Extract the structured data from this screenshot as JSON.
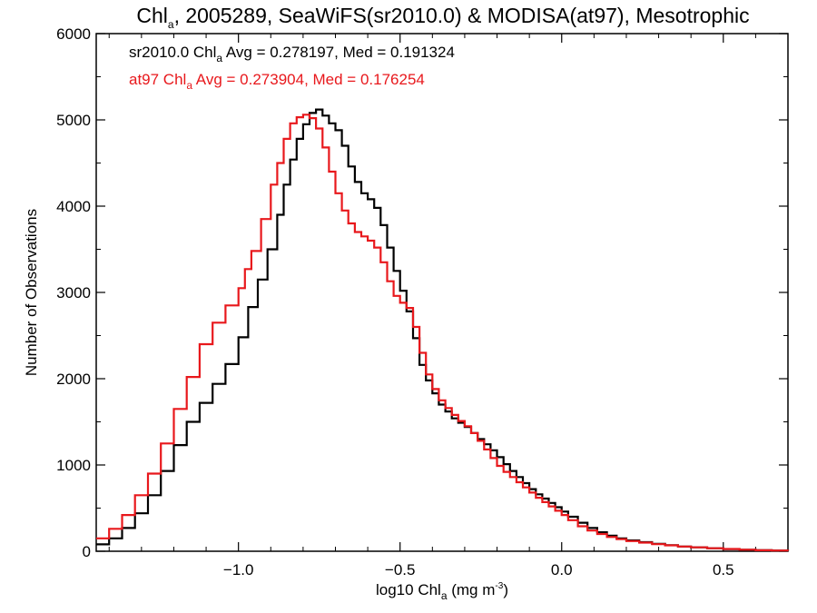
{
  "chart_data": {
    "type": "line",
    "step": true,
    "title": {
      "pre": "Chl",
      "sub": "a",
      "post": ", 2005289, SeaWiFS(sr2010.0) & MODISA(at97), Mesotrophic"
    },
    "xlabel": {
      "pre": "log10 Chl",
      "sub": "a",
      "mid": " (mg m",
      "sup": "-3",
      "post": ")"
    },
    "ylabel": "Number of Observations",
    "xlim": [
      -1.44,
      0.7
    ],
    "ylim": [
      0,
      6000
    ],
    "x_ticks": [
      {
        "value": -1.0,
        "label": "−1.0"
      },
      {
        "value": -0.5,
        "label": "−0.5"
      },
      {
        "value": 0.0,
        "label": "0.0"
      },
      {
        "value": 0.5,
        "label": "0.5"
      }
    ],
    "y_ticks": [
      {
        "value": 0,
        "label": "0"
      },
      {
        "value": 1000,
        "label": "1000"
      },
      {
        "value": 2000,
        "label": "2000"
      },
      {
        "value": 3000,
        "label": "3000"
      },
      {
        "value": 4000,
        "label": "4000"
      },
      {
        "value": 5000,
        "label": "5000"
      },
      {
        "value": 6000,
        "label": "6000"
      }
    ],
    "series": [
      {
        "name": "sr2010.0",
        "color": "#000000",
        "stats": {
          "pre": "sr2010.0 Chl",
          "sub": "a",
          "post": " Avg = 0.278197, Med = 0.191324"
        },
        "points": [
          [
            -1.44,
            80
          ],
          [
            -1.4,
            150
          ],
          [
            -1.36,
            270
          ],
          [
            -1.32,
            440
          ],
          [
            -1.28,
            650
          ],
          [
            -1.24,
            930
          ],
          [
            -1.2,
            1230
          ],
          [
            -1.16,
            1500
          ],
          [
            -1.12,
            1720
          ],
          [
            -1.08,
            1940
          ],
          [
            -1.04,
            2170
          ],
          [
            -1.0,
            2480
          ],
          [
            -0.97,
            2830
          ],
          [
            -0.94,
            3150
          ],
          [
            -0.91,
            3500
          ],
          [
            -0.88,
            3900
          ],
          [
            -0.86,
            4250
          ],
          [
            -0.84,
            4540
          ],
          [
            -0.82,
            4780
          ],
          [
            -0.8,
            4950
          ],
          [
            -0.78,
            5080
          ],
          [
            -0.76,
            5120
          ],
          [
            -0.74,
            5050
          ],
          [
            -0.72,
            4960
          ],
          [
            -0.7,
            4880
          ],
          [
            -0.68,
            4700
          ],
          [
            -0.66,
            4460
          ],
          [
            -0.64,
            4280
          ],
          [
            -0.62,
            4150
          ],
          [
            -0.6,
            4080
          ],
          [
            -0.58,
            3980
          ],
          [
            -0.56,
            3780
          ],
          [
            -0.54,
            3520
          ],
          [
            -0.52,
            3250
          ],
          [
            -0.5,
            3020
          ],
          [
            -0.48,
            2780
          ],
          [
            -0.46,
            2470
          ],
          [
            -0.44,
            2160
          ],
          [
            -0.42,
            1980
          ],
          [
            -0.4,
            1830
          ],
          [
            -0.38,
            1700
          ],
          [
            -0.36,
            1620
          ],
          [
            -0.34,
            1540
          ],
          [
            -0.32,
            1490
          ],
          [
            -0.3,
            1440
          ],
          [
            -0.28,
            1370
          ],
          [
            -0.26,
            1300
          ],
          [
            -0.24,
            1240
          ],
          [
            -0.22,
            1170
          ],
          [
            -0.2,
            1090
          ],
          [
            -0.18,
            1010
          ],
          [
            -0.16,
            930
          ],
          [
            -0.14,
            860
          ],
          [
            -0.12,
            790
          ],
          [
            -0.1,
            720
          ],
          [
            -0.08,
            660
          ],
          [
            -0.06,
            610
          ],
          [
            -0.04,
            560
          ],
          [
            -0.02,
            510
          ],
          [
            0.0,
            460
          ],
          [
            0.02,
            400
          ],
          [
            0.05,
            330
          ],
          [
            0.08,
            270
          ],
          [
            0.11,
            220
          ],
          [
            0.14,
            180
          ],
          [
            0.17,
            150
          ],
          [
            0.2,
            125
          ],
          [
            0.24,
            105
          ],
          [
            0.28,
            85
          ],
          [
            0.32,
            70
          ],
          [
            0.36,
            55
          ],
          [
            0.4,
            45
          ],
          [
            0.45,
            35
          ],
          [
            0.5,
            25
          ],
          [
            0.55,
            18
          ],
          [
            0.6,
            12
          ],
          [
            0.65,
            8
          ],
          [
            0.7,
            5
          ]
        ]
      },
      {
        "name": "at97",
        "color": "#e8181c",
        "stats": {
          "pre": "at97 Chl",
          "sub": "a",
          "post": " Avg = 0.273904, Med = 0.176254"
        },
        "points": [
          [
            -1.44,
            150
          ],
          [
            -1.4,
            260
          ],
          [
            -1.36,
            420
          ],
          [
            -1.32,
            650
          ],
          [
            -1.28,
            900
          ],
          [
            -1.24,
            1250
          ],
          [
            -1.2,
            1650
          ],
          [
            -1.16,
            2020
          ],
          [
            -1.12,
            2400
          ],
          [
            -1.08,
            2650
          ],
          [
            -1.04,
            2850
          ],
          [
            -1.0,
            3050
          ],
          [
            -0.98,
            3270
          ],
          [
            -0.96,
            3480
          ],
          [
            -0.93,
            3850
          ],
          [
            -0.9,
            4250
          ],
          [
            -0.88,
            4500
          ],
          [
            -0.86,
            4780
          ],
          [
            -0.84,
            4960
          ],
          [
            -0.82,
            5030
          ],
          [
            -0.8,
            5060
          ],
          [
            -0.78,
            5020
          ],
          [
            -0.76,
            4900
          ],
          [
            -0.74,
            4680
          ],
          [
            -0.72,
            4400
          ],
          [
            -0.7,
            4150
          ],
          [
            -0.68,
            3950
          ],
          [
            -0.66,
            3800
          ],
          [
            -0.64,
            3700
          ],
          [
            -0.62,
            3650
          ],
          [
            -0.6,
            3600
          ],
          [
            -0.58,
            3520
          ],
          [
            -0.56,
            3350
          ],
          [
            -0.54,
            3130
          ],
          [
            -0.52,
            2960
          ],
          [
            -0.5,
            2880
          ],
          [
            -0.48,
            2820
          ],
          [
            -0.46,
            2600
          ],
          [
            -0.44,
            2300
          ],
          [
            -0.42,
            2050
          ],
          [
            -0.4,
            1880
          ],
          [
            -0.38,
            1750
          ],
          [
            -0.36,
            1660
          ],
          [
            -0.34,
            1580
          ],
          [
            -0.32,
            1510
          ],
          [
            -0.3,
            1450
          ],
          [
            -0.28,
            1370
          ],
          [
            -0.26,
            1280
          ],
          [
            -0.24,
            1180
          ],
          [
            -0.22,
            1080
          ],
          [
            -0.2,
            990
          ],
          [
            -0.18,
            920
          ],
          [
            -0.16,
            860
          ],
          [
            -0.14,
            800
          ],
          [
            -0.12,
            740
          ],
          [
            -0.1,
            680
          ],
          [
            -0.08,
            620
          ],
          [
            -0.06,
            570
          ],
          [
            -0.04,
            520
          ],
          [
            -0.02,
            470
          ],
          [
            0.0,
            420
          ],
          [
            0.02,
            360
          ],
          [
            0.05,
            290
          ],
          [
            0.08,
            240
          ],
          [
            0.11,
            200
          ],
          [
            0.14,
            165
          ],
          [
            0.17,
            140
          ],
          [
            0.2,
            118
          ],
          [
            0.24,
            100
          ],
          [
            0.28,
            82
          ],
          [
            0.32,
            68
          ],
          [
            0.36,
            55
          ],
          [
            0.4,
            45
          ],
          [
            0.45,
            35
          ],
          [
            0.5,
            26
          ],
          [
            0.55,
            18
          ],
          [
            0.6,
            12
          ],
          [
            0.65,
            8
          ],
          [
            0.7,
            5
          ]
        ]
      }
    ]
  }
}
